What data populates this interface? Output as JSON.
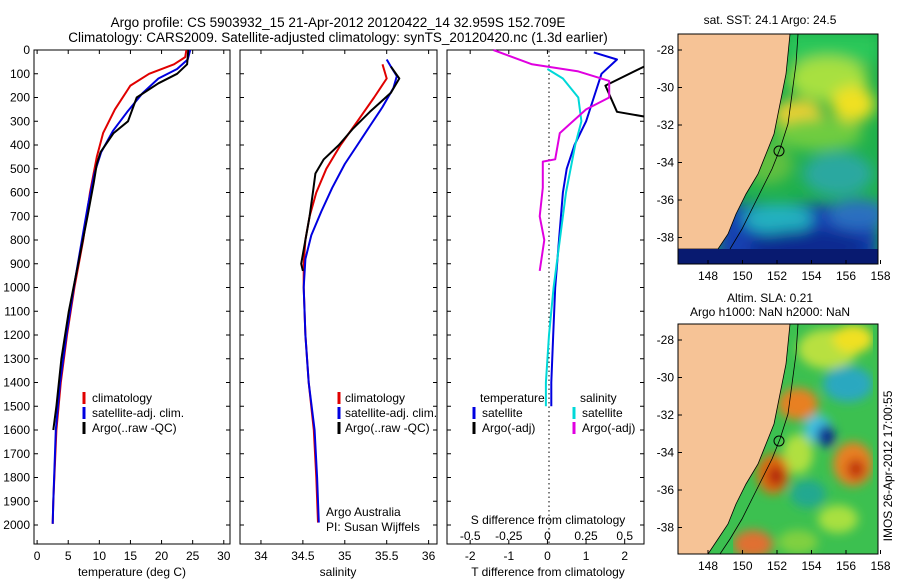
{
  "header": {
    "title_line1": "Argo profile: CS 5903932_15 21-Apr-2012 20120422_14 32.959S 152.709E",
    "title_line2": "Climatology: CARS2009. Satellite-adjusted climatology: synTS_20120420.nc (1.3d earlier)"
  },
  "right_panels": {
    "sst_title": "sat. SST: 24.1  Argo: 24.5",
    "sla_title_line1": "Altim. SLA: 0.21",
    "sla_title_line2": "Argo h1000: NaN h2000: NaN",
    "timestamp": "IMOS 26-Apr-2012 17:00:55",
    "lat_ticks": [
      "-28",
      "-30",
      "-32",
      "-34",
      "-36",
      "-38"
    ],
    "lon_ticks": [
      "148",
      "150",
      "152",
      "154",
      "156",
      "158"
    ],
    "colors": {
      "land": "#f6c396",
      "sea_warm": "#f0e020",
      "sea_cool": "#0a3aa0"
    }
  },
  "chart_data": [
    {
      "type": "line",
      "title": "",
      "xlabel": "temperature (deg C)",
      "ylabel": "",
      "xlim": [
        -0.5,
        31
      ],
      "ylim": [
        2080,
        0
      ],
      "x_ticks": [
        "0",
        "5",
        "10",
        "15",
        "20",
        "25",
        "30"
      ],
      "y_ticks": [
        "0",
        "100",
        "200",
        "300",
        "400",
        "500",
        "600",
        "700",
        "800",
        "900",
        "1000",
        "1100",
        "1200",
        "1300",
        "1400",
        "1500",
        "1600",
        "1700",
        "1800",
        "1900",
        "2000"
      ],
      "legend": {
        "placement": "lower-middle",
        "entries": [
          "climatology",
          "satellite-adj. clim.",
          "Argo(..raw -QC)"
        ]
      },
      "series": [
        {
          "name": "climatology",
          "color": "#e00000",
          "points": [
            [
              24,
              0
            ],
            [
              23.8,
              30
            ],
            [
              22,
              60
            ],
            [
              18,
              100
            ],
            [
              15,
              150
            ],
            [
              12.5,
              250
            ],
            [
              10.6,
              350
            ],
            [
              9.6,
              450
            ],
            [
              8.5,
              600
            ],
            [
              7.4,
              800
            ],
            [
              6,
              1000
            ],
            [
              4.8,
              1200
            ],
            [
              3.8,
              1400
            ],
            [
              3.1,
              1600
            ],
            [
              2.6,
              1900
            ],
            [
              2.5,
              1995
            ]
          ]
        },
        {
          "name": "satellite-adj. clim.",
          "color": "#0000e0",
          "points": [
            [
              24.6,
              0
            ],
            [
              24.2,
              40
            ],
            [
              22.5,
              80
            ],
            [
              19.5,
              120
            ],
            [
              17,
              180
            ],
            [
              14.5,
              260
            ],
            [
              12.2,
              340
            ],
            [
              10.3,
              430
            ],
            [
              9.2,
              520
            ],
            [
              8.2,
              650
            ],
            [
              7.2,
              800
            ],
            [
              5.9,
              1000
            ],
            [
              4.7,
              1200
            ],
            [
              3.7,
              1400
            ],
            [
              3,
              1600
            ],
            [
              2.6,
              1900
            ],
            [
              2.5,
              1995
            ]
          ]
        },
        {
          "name": "Argo(..raw -QC)",
          "color": "#000000",
          "points": [
            [
              24.3,
              0
            ],
            [
              24.1,
              60
            ],
            [
              22.5,
              100
            ],
            [
              19.5,
              140
            ],
            [
              16,
              200
            ],
            [
              14.6,
              300
            ],
            [
              12.3,
              350
            ],
            [
              10.2,
              430
            ],
            [
              9.6,
              480
            ],
            [
              9.1,
              560
            ],
            [
              8.1,
              700
            ],
            [
              6.6,
              900
            ],
            [
              5.1,
              1100
            ],
            [
              3.9,
              1300
            ],
            [
              3.1,
              1500
            ],
            [
              2.6,
              1600
            ]
          ]
        }
      ]
    },
    {
      "type": "line",
      "title": "",
      "xlabel": "salinity",
      "ylabel": "",
      "xlim": [
        33.75,
        36.1
      ],
      "ylim": [
        2080,
        0
      ],
      "x_ticks": [
        "34",
        "34.5",
        "35",
        "35.5",
        "36"
      ],
      "legend": {
        "placement": "lower-middle",
        "entries": [
          "climatology",
          "satellite-adj. clim.",
          "Argo(..raw -QC)"
        ]
      },
      "annotation_line1": "Argo Australia",
      "annotation_line2": "PI: Susan Wijffels",
      "series": [
        {
          "name": "climatology",
          "color": "#e00000",
          "points": [
            [
              35.45,
              60
            ],
            [
              35.5,
              120
            ],
            [
              35.35,
              200
            ],
            [
              35.15,
              300
            ],
            [
              34.95,
              400
            ],
            [
              34.78,
              500
            ],
            [
              34.66,
              600
            ],
            [
              34.58,
              700
            ],
            [
              34.53,
              800
            ],
            [
              34.51,
              900
            ],
            [
              34.51,
              1000
            ],
            [
              34.53,
              1200
            ],
            [
              34.57,
              1400
            ],
            [
              34.63,
              1600
            ],
            [
              34.66,
              1800
            ],
            [
              34.68,
              1990
            ]
          ]
        },
        {
          "name": "satellite-adj. clim.",
          "color": "#0000e0",
          "points": [
            [
              35.5,
              40
            ],
            [
              35.55,
              70
            ],
            [
              35.62,
              110
            ],
            [
              35.58,
              160
            ],
            [
              35.45,
              240
            ],
            [
              35.3,
              320
            ],
            [
              35.15,
              400
            ],
            [
              35.0,
              480
            ],
            [
              34.85,
              580
            ],
            [
              34.72,
              680
            ],
            [
              34.6,
              780
            ],
            [
              34.53,
              880
            ],
            [
              34.51,
              1000
            ],
            [
              34.53,
              1200
            ],
            [
              34.57,
              1400
            ],
            [
              34.64,
              1600
            ],
            [
              34.67,
              1800
            ],
            [
              34.69,
              1990
            ]
          ]
        },
        {
          "name": "Argo(..raw -QC)",
          "color": "#000000",
          "points": [
            [
              35.55,
              70
            ],
            [
              35.65,
              120
            ],
            [
              35.55,
              180
            ],
            [
              35.3,
              260
            ],
            [
              35.1,
              330
            ],
            [
              34.93,
              400
            ],
            [
              34.75,
              460
            ],
            [
              34.65,
              520
            ],
            [
              34.62,
              600
            ],
            [
              34.58,
              700
            ],
            [
              34.53,
              800
            ],
            [
              34.48,
              900
            ],
            [
              34.5,
              930
            ]
          ]
        }
      ]
    },
    {
      "type": "line",
      "title": "",
      "xlabel": "T difference from climatology",
      "x2label": "S difference from climatology",
      "ylabel": "",
      "xlim": [
        -2.6,
        2.5
      ],
      "ylim": [
        2080,
        0
      ],
      "x_ticks": [
        "-2",
        "-1",
        "0",
        "1",
        "2"
      ],
      "x2_ticks": [
        "-0.5",
        "-0.25",
        "0",
        "0.25",
        "0.5"
      ],
      "x2lim": [
        -0.65,
        0.625
      ],
      "legend": {
        "placement": "lower-middle",
        "temperature_heading": "temperature",
        "salinity_heading": "salinity",
        "entries": [
          "satellite",
          "Argo(-adj)",
          "satellite",
          "Argo(-adj)"
        ]
      },
      "series": [
        {
          "name": "temperature satellite",
          "color": "#0000e0",
          "axis": "T",
          "points": [
            [
              1.2,
              10
            ],
            [
              1.8,
              40
            ],
            [
              1.4,
              100
            ],
            [
              1.2,
              200
            ],
            [
              1.0,
              300
            ],
            [
              0.7,
              400
            ],
            [
              0.5,
              500
            ],
            [
              0.4,
              600
            ],
            [
              0.3,
              800
            ],
            [
              0.2,
              1000
            ],
            [
              0.15,
              1200
            ],
            [
              0.1,
              1400
            ],
            [
              0.1,
              1500
            ]
          ]
        },
        {
          "name": "temperature Argo(-adj)",
          "color": "#000000",
          "axis": "T",
          "points": [
            [
              2.5,
              70
            ],
            [
              1.5,
              150
            ],
            [
              1.8,
              260
            ],
            [
              2.5,
              280
            ]
          ]
        },
        {
          "name": "salinity satellite",
          "color": "#00d8d8",
          "axis": "S",
          "points": [
            [
              0.0,
              80
            ],
            [
              0.1,
              120
            ],
            [
              0.2,
              200
            ],
            [
              0.22,
              300
            ],
            [
              0.18,
              400
            ],
            [
              0.15,
              500
            ],
            [
              0.12,
              600
            ],
            [
              0.08,
              800
            ],
            [
              0.04,
              1000
            ],
            [
              0.01,
              1200
            ],
            [
              -0.01,
              1400
            ],
            [
              -0.01,
              1500
            ]
          ]
        },
        {
          "name": "salinity Argo(-adj)",
          "color": "#e000e0",
          "axis": "S",
          "points": [
            [
              -0.35,
              0
            ],
            [
              -0.1,
              60
            ],
            [
              0.2,
              90
            ],
            [
              0.4,
              130
            ],
            [
              0.4,
              200
            ],
            [
              0.25,
              250
            ],
            [
              0.08,
              350
            ],
            [
              0.05,
              460
            ],
            [
              -0.03,
              470
            ],
            [
              -0.03,
              580
            ],
            [
              -0.05,
              700
            ],
            [
              -0.02,
              800
            ],
            [
              -0.05,
              930
            ]
          ]
        }
      ]
    }
  ]
}
